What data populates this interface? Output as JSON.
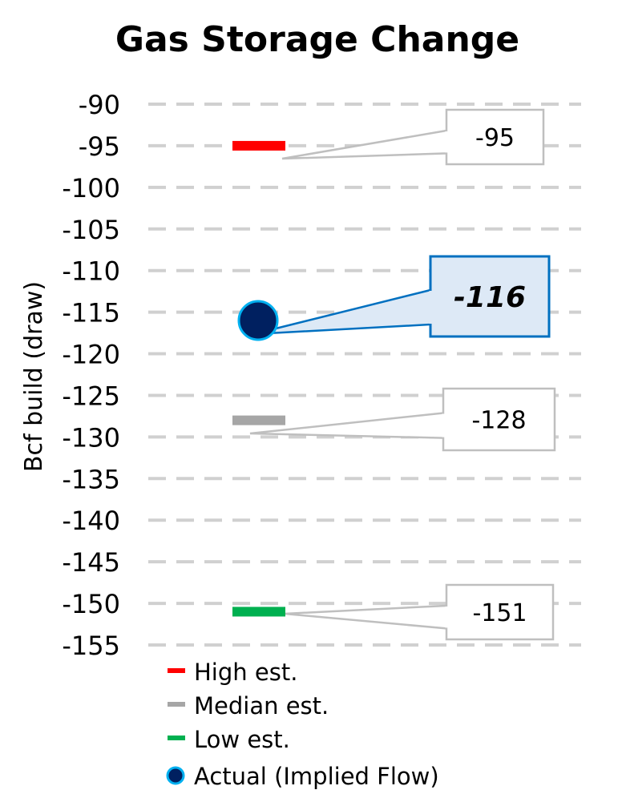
{
  "chart_data": {
    "type": "scatter",
    "title": "Gas Storage Change",
    "ylabel": "Bcf build (draw)",
    "xlabel": "",
    "ylim": [
      -155,
      -90
    ],
    "y_inverted": true,
    "yticks": [
      -90,
      -95,
      -100,
      -105,
      -110,
      -115,
      -120,
      -125,
      -130,
      -135,
      -140,
      -145,
      -150,
      -155
    ],
    "grid": true,
    "legend_placement": "bottom-left",
    "series": [
      {
        "name": "High est.",
        "marker": "dash",
        "color": "#ff0000",
        "value": -95,
        "label": "-95"
      },
      {
        "name": "Median est.",
        "marker": "dash",
        "color": "#a6a6a6",
        "value": -128,
        "label": "-128"
      },
      {
        "name": "Low est.",
        "marker": "dash",
        "color": "#00b050",
        "value": -151,
        "label": "-151"
      },
      {
        "name": "Actual (Implied Flow)",
        "marker": "circle",
        "color": "#002060",
        "edge_color": "#00b0f0",
        "value": -116,
        "label": "-116",
        "label_style": "bold-italic highlighted"
      }
    ]
  }
}
